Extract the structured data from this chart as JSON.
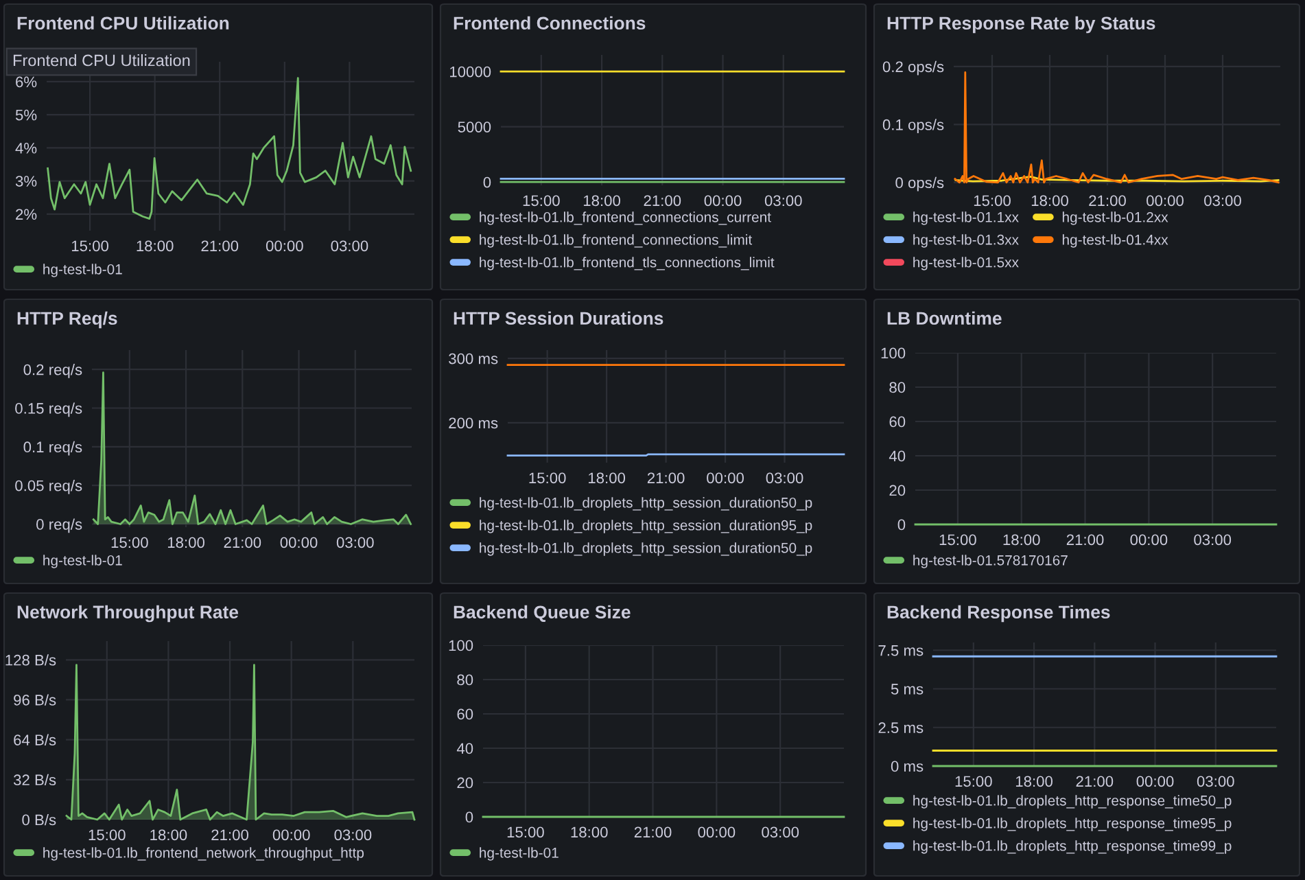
{
  "chart_data": [
    {
      "type": "line",
      "title": "Frontend CPU Utilization",
      "annotations": [
        "Frontend CPU Utilization"
      ],
      "xlim": [
        "2000-01-01T13:00",
        "2000-01-02T06:00"
      ],
      "xticks": [
        {
          "value": "2000-01-01T15:00",
          "label": "15:00"
        },
        {
          "value": "2000-01-01T18:00",
          "label": "18:00"
        },
        {
          "value": "2000-01-01T21:00",
          "label": "21:00"
        },
        {
          "value": "2000-01-02T00:00",
          "label": "00:00"
        },
        {
          "value": "2000-01-02T03:00",
          "label": "03:00"
        }
      ],
      "ylim": [
        1.5,
        6.6
      ],
      "yticks": [
        {
          "value": 2,
          "label": "2%"
        },
        {
          "value": 3,
          "label": "3%"
        },
        {
          "value": 4,
          "label": "4%"
        },
        {
          "value": 5,
          "label": "5%"
        },
        {
          "value": 6,
          "label": "6%"
        }
      ],
      "grid": true,
      "legend": "bottom",
      "series": [
        {
          "name": "hg-test-lb-01",
          "color": "#73bf69",
          "x": [
            "2000-01-01T13:03",
            "2000-01-01T13:12",
            "2000-01-01T13:22",
            "2000-01-01T13:36",
            "2000-01-01T13:50",
            "2000-01-01T14:16",
            "2000-01-01T14:35",
            "2000-01-01T14:48",
            "2000-01-01T15:00",
            "2000-01-01T15:18",
            "2000-01-01T15:36",
            "2000-01-01T15:54",
            "2000-01-01T16:10",
            "2000-01-01T16:29",
            "2000-01-01T16:50",
            "2000-01-01T17:00",
            "2000-01-01T17:26",
            "2000-01-01T17:45",
            "2000-01-01T17:51",
            "2000-01-01T17:59",
            "2000-01-01T18:10",
            "2000-01-01T18:29",
            "2000-01-01T18:48",
            "2000-01-01T19:14",
            "2000-01-01T19:33",
            "2000-01-01T19:58",
            "2000-01-01T20:24",
            "2000-01-01T20:55",
            "2000-01-01T21:20",
            "2000-01-01T21:40",
            "2000-01-01T22:05",
            "2000-01-01T22:24",
            "2000-01-01T22:33",
            "2000-01-01T22:43",
            "2000-01-01T23:02",
            "2000-01-01T23:31",
            "2000-01-01T23:40",
            "2000-01-01T23:53",
            "2000-01-02T00:06",
            "2000-01-02T00:24",
            "2000-01-02T00:37",
            "2000-01-02T00:43",
            "2000-01-02T00:56",
            "2000-01-02T01:28",
            "2000-01-02T01:53",
            "2000-01-02T02:19",
            "2000-01-02T02:41",
            "2000-01-02T02:56",
            "2000-01-02T03:10",
            "2000-01-02T03:28",
            "2000-01-02T04:00",
            "2000-01-02T04:12",
            "2000-01-02T04:36",
            "2000-01-02T04:54",
            "2000-01-02T05:10",
            "2000-01-02T05:26",
            "2000-01-02T05:33",
            "2000-01-02T05:50"
          ],
          "values": [
            3.38,
            2.48,
            2.14,
            2.97,
            2.48,
            2.9,
            2.62,
            2.97,
            2.28,
            2.9,
            2.48,
            3.52,
            2.48,
            2.9,
            3.34,
            2.07,
            1.93,
            1.86,
            2.07,
            3.69,
            2.62,
            2.35,
            2.69,
            2.42,
            2.69,
            3.04,
            2.62,
            2.55,
            2.35,
            2.65,
            2.28,
            2.9,
            3.83,
            3.66,
            4.0,
            4.35,
            3.18,
            2.97,
            3.31,
            4.08,
            6.11,
            3.25,
            2.97,
            3.11,
            3.31,
            2.9,
            4.15,
            3.11,
            3.73,
            3.11,
            4.35,
            3.66,
            3.52,
            4.08,
            3.18,
            2.9,
            4.03,
            3.31
          ]
        }
      ]
    },
    {
      "type": "line",
      "title": "Frontend Connections",
      "xlim": [
        "2000-01-01T13:00",
        "2000-01-02T06:00"
      ],
      "xticks": [
        {
          "value": "2000-01-01T15:00",
          "label": "15:00"
        },
        {
          "value": "2000-01-01T18:00",
          "label": "18:00"
        },
        {
          "value": "2000-01-01T21:00",
          "label": "21:00"
        },
        {
          "value": "2000-01-02T00:00",
          "label": "00:00"
        },
        {
          "value": "2000-01-02T03:00",
          "label": "03:00"
        }
      ],
      "ylim": [
        -300,
        11500
      ],
      "yticks": [
        0,
        5000,
        10000
      ],
      "grid": true,
      "legend": "bottom",
      "series": [
        {
          "name": "hg-test-lb-01.lb_frontend_connections_current",
          "color": "#73bf69",
          "x": [
            "2000-01-01T13:00",
            "2000-01-02T06:00"
          ],
          "values": [
            0,
            0
          ]
        },
        {
          "name": "hg-test-lb-01.lb_frontend_connections_limit",
          "color": "#fade2a",
          "x": [
            "2000-01-01T13:00",
            "2000-01-02T06:00"
          ],
          "values": [
            10000,
            10000
          ]
        },
        {
          "name": "hg-test-lb-01.lb_frontend_tls_connections_limit",
          "color": "#8ab8ff",
          "x": [
            "2000-01-01T13:00",
            "2000-01-02T06:00"
          ],
          "values": [
            300,
            300
          ]
        }
      ]
    },
    {
      "type": "line",
      "title": "HTTP Response Rate by Status",
      "xlim": [
        "2000-01-01T13:00",
        "2000-01-02T06:00"
      ],
      "xticks": [
        {
          "value": "2000-01-01T15:00",
          "label": "15:00"
        },
        {
          "value": "2000-01-01T18:00",
          "label": "18:00"
        },
        {
          "value": "2000-01-01T21:00",
          "label": "21:00"
        },
        {
          "value": "2000-01-02T00:00",
          "label": "00:00"
        },
        {
          "value": "2000-01-02T03:00",
          "label": "03:00"
        }
      ],
      "ylim": [
        -0.005,
        0.22
      ],
      "yticks": [
        {
          "value": 0,
          "label": "0 ops/s"
        },
        {
          "value": 0.1,
          "label": "0.1 ops/s"
        },
        {
          "value": 0.2,
          "label": "0.2 ops/s"
        }
      ],
      "grid": true,
      "legend": "bottom",
      "series": [
        {
          "name": "hg-test-lb-01.1xx",
          "color": "#73bf69"
        },
        {
          "name": "hg-test-lb-01.2xx",
          "color": "#fade2a",
          "x": [
            "2000-01-01T13:06",
            "2000-01-01T13:30",
            "2000-01-01T14:00",
            "2000-01-01T15:30",
            "2000-01-01T17:00",
            "2000-01-01T17:36",
            "2000-01-01T19:00",
            "2000-01-01T21:00",
            "2000-01-01T23:00",
            "2000-01-02T01:00",
            "2000-01-02T03:00",
            "2000-01-02T05:00",
            "2000-01-02T05:54"
          ],
          "values": [
            0.004,
            0.003,
            0.002,
            0.003,
            0.01,
            0.005,
            0.004,
            0.003,
            0.003,
            0.002,
            0.003,
            0.002,
            0.004
          ]
        },
        {
          "name": "hg-test-lb-01.3xx",
          "color": "#8ab8ff"
        },
        {
          "name": "hg-test-lb-01.4xx",
          "color": "#ff780a",
          "x": [
            "2000-01-01T13:04",
            "2000-01-01T13:18",
            "2000-01-01T13:28",
            "2000-01-01T13:33",
            "2000-01-01T13:36",
            "2000-01-01T13:40",
            "2000-01-01T13:45",
            "2000-01-01T14:02",
            "2000-01-01T14:43",
            "2000-01-01T15:18",
            "2000-01-01T15:34",
            "2000-01-01T15:45",
            "2000-01-01T15:58",
            "2000-01-01T16:06",
            "2000-01-01T16:15",
            "2000-01-01T16:27",
            "2000-01-01T16:40",
            "2000-01-01T16:51",
            "2000-01-01T17:02",
            "2000-01-01T17:07",
            "2000-01-01T17:13",
            "2000-01-01T17:24",
            "2000-01-01T17:35",
            "2000-01-01T17:42",
            "2000-01-01T17:48",
            "2000-01-01T18:20",
            "2000-01-01T18:54",
            "2000-01-01T19:30",
            "2000-01-01T19:43",
            "2000-01-01T20:00",
            "2000-01-01T20:17",
            "2000-01-01T20:58",
            "2000-01-01T21:42",
            "2000-01-01T21:54",
            "2000-01-01T22:06",
            "2000-01-01T22:47",
            "2000-01-01T23:36",
            "2000-01-02T00:24",
            "2000-01-02T00:52",
            "2000-01-02T01:42",
            "2000-01-02T02:40",
            "2000-01-02T03:00",
            "2000-01-02T03:48",
            "2000-01-02T04:36",
            "2000-01-02T05:24",
            "2000-01-02T05:54"
          ],
          "values": [
            0.006,
            0.0,
            0.011,
            0.0,
            0.19,
            0.0,
            0.006,
            0.011,
            0.001,
            0.0,
            0.016,
            0.0,
            0.011,
            0.0,
            0.016,
            0.0,
            0.011,
            0.0,
            0.031,
            0.0,
            0.006,
            0.0,
            0.038,
            0.0,
            0.006,
            0.011,
            0.006,
            0.0,
            0.016,
            0.0,
            0.013,
            0.006,
            0.0,
            0.013,
            0.0,
            0.006,
            0.011,
            0.013,
            0.006,
            0.011,
            0.006,
            0.009,
            0.004,
            0.008,
            0.004,
            0.0
          ]
        },
        {
          "name": "hg-test-lb-01.5xx",
          "color": "#f2495c"
        }
      ]
    },
    {
      "type": "area",
      "title": "HTTP Req/s",
      "xlim": [
        "2000-01-01T13:00",
        "2000-01-02T06:00"
      ],
      "xticks": [
        {
          "value": "2000-01-01T15:00",
          "label": "15:00"
        },
        {
          "value": "2000-01-01T18:00",
          "label": "18:00"
        },
        {
          "value": "2000-01-01T21:00",
          "label": "21:00"
        },
        {
          "value": "2000-01-02T00:00",
          "label": "00:00"
        },
        {
          "value": "2000-01-02T03:00",
          "label": "03:00"
        }
      ],
      "ylim": [
        -0.004,
        0.225
      ],
      "yticks": [
        {
          "value": 0,
          "label": "0 req/s"
        },
        {
          "value": 0.05,
          "label": "0.05 req/s"
        },
        {
          "value": 0.1,
          "label": "0.1 req/s"
        },
        {
          "value": 0.15,
          "label": "0.15 req/s"
        },
        {
          "value": 0.2,
          "label": "0.2 req/s"
        }
      ],
      "grid": true,
      "legend": "bottom",
      "series": [
        {
          "name": "hg-test-lb-01",
          "color": "#73bf69",
          "x": [
            "2000-01-01T13:05",
            "2000-01-01T13:19",
            "2000-01-01T13:30",
            "2000-01-01T13:36",
            "2000-01-01T13:42",
            "2000-01-01T13:51",
            "2000-01-01T14:02",
            "2000-01-01T14:31",
            "2000-01-01T14:46",
            "2000-01-01T15:00",
            "2000-01-01T15:14",
            "2000-01-01T15:36",
            "2000-01-01T15:46",
            "2000-01-01T16:00",
            "2000-01-01T16:19",
            "2000-01-01T16:34",
            "2000-01-01T16:48",
            "2000-01-01T17:07",
            "2000-01-01T17:17",
            "2000-01-01T17:31",
            "2000-01-01T17:50",
            "2000-01-01T18:07",
            "2000-01-01T18:28",
            "2000-01-01T18:39",
            "2000-01-01T18:58",
            "2000-01-01T19:16",
            "2000-01-01T19:34",
            "2000-01-01T19:51",
            "2000-01-01T20:06",
            "2000-01-01T20:22",
            "2000-01-01T20:38",
            "2000-01-01T21:14",
            "2000-01-01T21:30",
            "2000-01-01T22:06",
            "2000-01-01T22:17",
            "2000-01-01T22:38",
            "2000-01-01T23:00",
            "2000-01-01T23:24",
            "2000-01-01T23:46",
            "2000-01-02T00:07",
            "2000-01-02T00:40",
            "2000-01-02T00:50",
            "2000-01-02T01:17",
            "2000-01-02T01:30",
            "2000-01-02T01:54",
            "2000-01-02T02:17",
            "2000-01-02T02:46",
            "2000-01-02T03:22",
            "2000-01-02T03:58",
            "2000-01-02T04:34",
            "2000-01-02T05:02",
            "2000-01-02T05:17",
            "2000-01-02T05:42",
            "2000-01-02T05:57"
          ],
          "values": [
            0.006,
            0,
            0.083,
            0.196,
            0.006,
            0.009,
            0.003,
            0,
            0.006,
            0,
            0.006,
            0.024,
            0.003,
            0.015,
            0.012,
            0.003,
            0.006,
            0.031,
            0,
            0.015,
            0.015,
            0.003,
            0.037,
            0,
            0.003,
            0.013,
            0,
            0.018,
            0,
            0.018,
            0,
            0.005,
            0,
            0.024,
            0,
            0.005,
            0.011,
            0.003,
            0.006,
            0.003,
            0.015,
            0,
            0.009,
            0,
            0.009,
            0.003,
            0,
            0.006,
            0.003,
            0.005,
            0.006,
            0,
            0.012,
            0
          ]
        }
      ]
    },
    {
      "type": "line",
      "title": "HTTP Session Durations",
      "xlim": [
        "2000-01-01T13:00",
        "2000-01-02T06:00"
      ],
      "xticks": [
        {
          "value": "2000-01-01T15:00",
          "label": "15:00"
        },
        {
          "value": "2000-01-01T18:00",
          "label": "18:00"
        },
        {
          "value": "2000-01-01T21:00",
          "label": "21:00"
        },
        {
          "value": "2000-01-02T00:00",
          "label": "00:00"
        },
        {
          "value": "2000-01-02T03:00",
          "label": "03:00"
        }
      ],
      "ylim": [
        138,
        313
      ],
      "yticks": [
        {
          "value": 200,
          "label": "200 ms"
        },
        {
          "value": 300,
          "label": "300 ms"
        }
      ],
      "grid": true,
      "legend": "bottom",
      "series": [
        {
          "name": "hg-test-lb-01.lb_droplets_http_session_duration50_p",
          "color": "#73bf69"
        },
        {
          "name": "hg-test-lb-01.lb_droplets_http_session_duration95_p",
          "color": "#fade2a"
        },
        {
          "name": "hg-test-lb-01.lb_droplets_http_session_duration50_p",
          "color": "#8ab8ff",
          "x": [
            "2000-01-01T13:00",
            "2000-01-01T20:00",
            "2000-01-01T20:06",
            "2000-01-02T06:00"
          ],
          "values": [
            149,
            149,
            151,
            151
          ]
        },
        {
          "color": "#ff780a",
          "x": [
            "2000-01-01T13:00",
            "2000-01-02T06:00"
          ],
          "values": [
            290,
            290
          ]
        }
      ]
    },
    {
      "type": "line",
      "title": "LB Downtime",
      "xlim": [
        "2000-01-01T13:00",
        "2000-01-02T06:00"
      ],
      "xticks": [
        {
          "value": "2000-01-01T15:00",
          "label": "15:00"
        },
        {
          "value": "2000-01-01T18:00",
          "label": "18:00"
        },
        {
          "value": "2000-01-01T21:00",
          "label": "21:00"
        },
        {
          "value": "2000-01-02T00:00",
          "label": "00:00"
        },
        {
          "value": "2000-01-02T03:00",
          "label": "03:00"
        }
      ],
      "ylim": [
        0,
        100
      ],
      "yticks": [
        0,
        20,
        40,
        60,
        80,
        100
      ],
      "grid": true,
      "legend": "bottom",
      "series": [
        {
          "name": "hg-test-lb-01.578170167",
          "color": "#73bf69",
          "x": [
            "2000-01-01T13:00",
            "2000-01-02T06:00"
          ],
          "values": [
            0,
            0
          ]
        }
      ]
    },
    {
      "type": "area",
      "title": "Network Throughput Rate",
      "xlim": [
        "2000-01-01T13:00",
        "2000-01-02T06:00"
      ],
      "xticks": [
        {
          "value": "2000-01-01T15:00",
          "label": "15:00"
        },
        {
          "value": "2000-01-01T18:00",
          "label": "18:00"
        },
        {
          "value": "2000-01-01T21:00",
          "label": "21:00"
        },
        {
          "value": "2000-01-02T00:00",
          "label": "00:00"
        },
        {
          "value": "2000-01-02T03:00",
          "label": "03:00"
        }
      ],
      "ylim": [
        0,
        143
      ],
      "yticks": [
        {
          "value": 0,
          "label": "0 B/s"
        },
        {
          "value": 32,
          "label": "32 B/s"
        },
        {
          "value": 64,
          "label": "64 B/s"
        },
        {
          "value": 96,
          "label": "96 B/s"
        },
        {
          "value": 128,
          "label": "128 B/s"
        }
      ],
      "grid": true,
      "legend": "bottom",
      "series": [
        {
          "name": "hg-test-lb-01.lb_frontend_network_throughput_http",
          "color": "#73bf69",
          "x": [
            "2000-01-01T13:02",
            "2000-01-01T13:16",
            "2000-01-01T13:26",
            "2000-01-01T13:31",
            "2000-01-01T13:37",
            "2000-01-01T13:48",
            "2000-01-01T14:02",
            "2000-01-01T14:32",
            "2000-01-01T14:53",
            "2000-01-01T15:07",
            "2000-01-01T15:35",
            "2000-01-01T15:44",
            "2000-01-01T16:00",
            "2000-01-01T16:12",
            "2000-01-01T16:37",
            "2000-01-01T17:05",
            "2000-01-01T17:14",
            "2000-01-01T17:30",
            "2000-01-01T17:49",
            "2000-01-01T18:07",
            "2000-01-01T18:25",
            "2000-01-01T18:35",
            "2000-01-01T19:10",
            "2000-01-01T19:51",
            "2000-01-01T20:02",
            "2000-01-01T20:22",
            "2000-01-01T20:40",
            "2000-01-01T21:07",
            "2000-01-01T21:49",
            "2000-01-01T22:07",
            "2000-01-01T22:11",
            "2000-01-01T22:16",
            "2000-01-01T22:40",
            "2000-01-01T23:02",
            "2000-01-01T23:33",
            "2000-01-02T00:07",
            "2000-01-02T00:39",
            "2000-01-02T01:21",
            "2000-01-02T02:02",
            "2000-01-02T02:40",
            "2000-01-02T03:28",
            "2000-01-02T04:10",
            "2000-01-02T04:44",
            "2000-01-02T05:12",
            "2000-01-02T05:54",
            "2000-01-02T06:00"
          ],
          "values": [
            3,
            0,
            53,
            124,
            3,
            5,
            2,
            0,
            5,
            0,
            12,
            0,
            8,
            3,
            5,
            15,
            0,
            8,
            6,
            3,
            24,
            0,
            5,
            8,
            0,
            6,
            3,
            5,
            0,
            62,
            124,
            0,
            5,
            4,
            4,
            3,
            6,
            6,
            7,
            2,
            5,
            3,
            3,
            5,
            6,
            0
          ]
        }
      ]
    },
    {
      "type": "line",
      "title": "Backend Queue Size",
      "xlim": [
        "2000-01-01T13:00",
        "2000-01-02T06:00"
      ],
      "xticks": [
        {
          "value": "2000-01-01T15:00",
          "label": "15:00"
        },
        {
          "value": "2000-01-01T18:00",
          "label": "18:00"
        },
        {
          "value": "2000-01-01T21:00",
          "label": "21:00"
        },
        {
          "value": "2000-01-02T00:00",
          "label": "00:00"
        },
        {
          "value": "2000-01-02T03:00",
          "label": "03:00"
        }
      ],
      "ylim": [
        0,
        100
      ],
      "yticks": [
        0,
        20,
        40,
        60,
        80,
        100
      ],
      "grid": true,
      "legend": "bottom",
      "series": [
        {
          "name": "hg-test-lb-01",
          "color": "#73bf69",
          "x": [
            "2000-01-01T13:00",
            "2000-01-02T06:00"
          ],
          "values": [
            0,
            0
          ]
        }
      ]
    },
    {
      "type": "line",
      "title": "Backend Response Times",
      "xlim": [
        "2000-01-01T13:00",
        "2000-01-02T06:00"
      ],
      "xticks": [
        {
          "value": "2000-01-01T15:00",
          "label": "15:00"
        },
        {
          "value": "2000-01-01T18:00",
          "label": "18:00"
        },
        {
          "value": "2000-01-01T21:00",
          "label": "21:00"
        },
        {
          "value": "2000-01-02T00:00",
          "label": "00:00"
        },
        {
          "value": "2000-01-02T03:00",
          "label": "03:00"
        }
      ],
      "ylim": [
        0,
        8
      ],
      "yticks": [
        {
          "value": 0,
          "label": "0 ms"
        },
        {
          "value": 2.5,
          "label": "2.5 ms"
        },
        {
          "value": 5,
          "label": "5 ms"
        },
        {
          "value": 7.5,
          "label": "7.5 ms"
        }
      ],
      "grid": true,
      "legend": "bottom",
      "series": [
        {
          "name": "hg-test-lb-01.lb_droplets_http_response_time50_p",
          "color": "#73bf69",
          "x": [
            "2000-01-01T13:00",
            "2000-01-02T06:00"
          ],
          "values": [
            0,
            0
          ]
        },
        {
          "name": "hg-test-lb-01.lb_droplets_http_response_time95_p",
          "color": "#fade2a",
          "x": [
            "2000-01-01T13:00",
            "2000-01-02T06:00"
          ],
          "values": [
            1,
            1
          ]
        },
        {
          "name": "hg-test-lb-01.lb_droplets_http_response_time99_p",
          "color": "#8ab8ff",
          "x": [
            "2000-01-01T13:00",
            "2000-01-02T06:00"
          ],
          "values": [
            7.1,
            7.1
          ]
        }
      ]
    }
  ]
}
